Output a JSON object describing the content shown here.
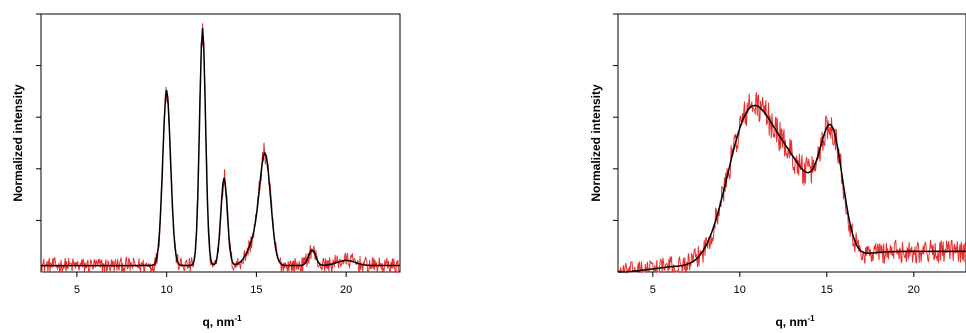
{
  "chart_data": [
    {
      "type": "line",
      "xlabel": "q, nm",
      "xlabel_superscript": "-1",
      "ylabel": "Normalized intensity",
      "xlim": [
        3,
        23
      ],
      "ylim": [
        0,
        1.0
      ],
      "xticks": [
        5,
        10,
        15,
        20
      ],
      "ytick_count": 5,
      "grid": false,
      "colors": {
        "measured": "#e8312f",
        "fit": "#000000"
      },
      "peaks": [
        {
          "q": 10.0,
          "height": 0.68,
          "width": 0.22
        },
        {
          "q": 12.0,
          "height": 0.92,
          "width": 0.17
        },
        {
          "q": 13.2,
          "height": 0.34,
          "width": 0.18
        },
        {
          "q": 15.5,
          "height": 0.38,
          "width": 0.3
        },
        {
          "q": 15.0,
          "height": 0.1,
          "width": 0.45
        },
        {
          "q": 18.1,
          "height": 0.06,
          "width": 0.2
        },
        {
          "q": 20.0,
          "height": 0.02,
          "width": 0.5
        }
      ],
      "baseline": 0.025,
      "noise_amplitude": 0.045
    },
    {
      "type": "line",
      "xlabel": "q, nm",
      "xlabel_superscript": "-1",
      "ylabel": "Normalized intensity",
      "xlim": [
        3,
        23
      ],
      "ylim": [
        0,
        1.0
      ],
      "xticks": [
        5,
        10,
        15,
        20
      ],
      "ytick_count": 5,
      "grid": false,
      "colors": {
        "measured": "#e8312f",
        "fit": "#000000"
      },
      "peaks": [
        {
          "q": 10.3,
          "height": 0.44,
          "width": 1.2
        },
        {
          "q": 12.0,
          "height": 0.3,
          "width": 1.4
        },
        {
          "q": 15.3,
          "height": 0.42,
          "width": 0.65
        },
        {
          "q": 13.8,
          "height": 0.2,
          "width": 1.3
        }
      ],
      "baseline": 0.02,
      "tail": {
        "level": 0.06,
        "start": 16.8
      },
      "noise_amplitude": 0.06
    }
  ]
}
